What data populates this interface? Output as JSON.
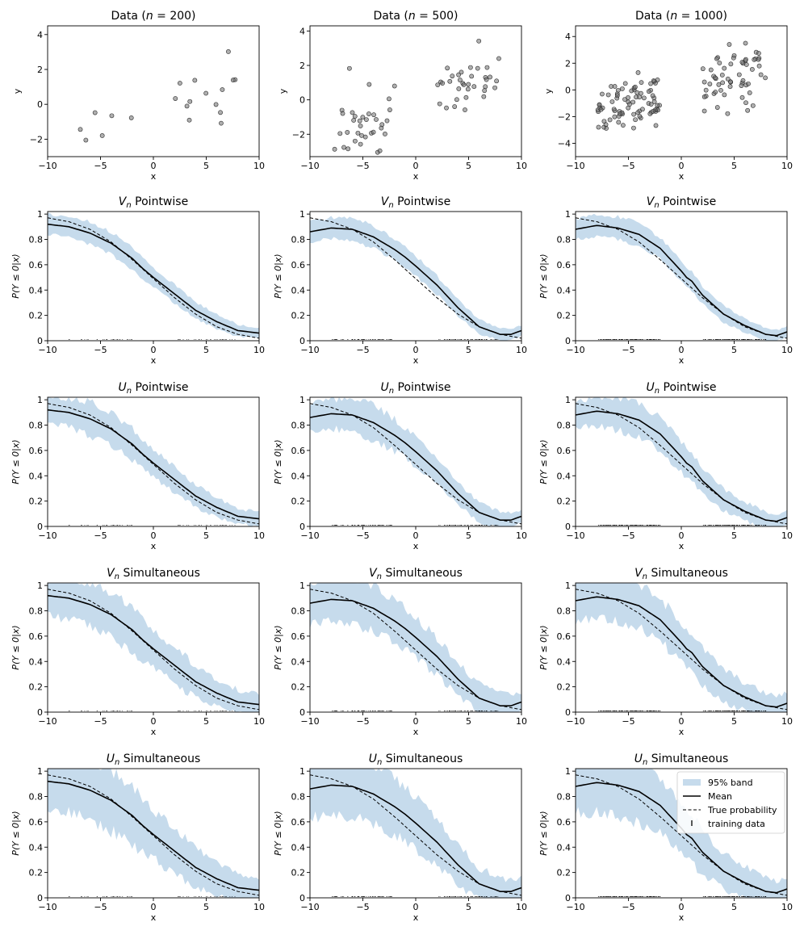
{
  "figure": {
    "columns": [
      {
        "n": 200,
        "scatter_ylim": [
          -3,
          4.5
        ],
        "scatter_yticks": [
          -2,
          0,
          2,
          4
        ]
      },
      {
        "n": 500,
        "scatter_ylim": [
          -3.3,
          4.3
        ],
        "scatter_yticks": [
          -2,
          0,
          2,
          4
        ]
      },
      {
        "n": 1000,
        "scatter_ylim": [
          -5.0,
          4.8
        ],
        "scatter_yticks": [
          -4,
          -2,
          0,
          2,
          4
        ]
      }
    ],
    "row_titles": {
      "data_prefix": "Data (",
      "data_var": "n",
      "data_op": " = ",
      "data_suffix": ")",
      "rows": [
        {
          "sym": "V",
          "sub": "n",
          "rest": " Pointwise"
        },
        {
          "sym": "U",
          "sub": "n",
          "rest": " Pointwise"
        },
        {
          "sym": "V",
          "sub": "n",
          "rest": " Simultaneous"
        },
        {
          "sym": "U",
          "sub": "n",
          "rest": " Simultaneous"
        }
      ]
    },
    "scatter_ylabel": "y",
    "xlabel": "x",
    "prob_ylabel": "P(Y ≤ 0|x)",
    "colors": {
      "band": "#c6dbec",
      "mean": "#000000",
      "true": "#000000",
      "points": "#6e6e6e"
    }
  },
  "chart_data": {
    "type": "grid",
    "xlim": [
      -10,
      10
    ],
    "xticks": [
      -10,
      -5,
      0,
      5,
      10
    ],
    "prob_ylim": [
      0,
      1.02
    ],
    "prob_yticks": [
      0.0,
      0.2,
      0.4,
      0.6,
      0.8,
      1.0
    ],
    "training_ranges": [
      [
        -8,
        -2
      ],
      [
        2,
        8
      ]
    ],
    "true_probability": {
      "x": [
        -10,
        -8,
        -6,
        -4,
        -2,
        0,
        2,
        4,
        6,
        8,
        10
      ],
      "y": [
        0.97,
        0.94,
        0.88,
        0.78,
        0.64,
        0.49,
        0.34,
        0.21,
        0.11,
        0.05,
        0.02
      ]
    },
    "mean": [
      {
        "x": [
          -10,
          -8,
          -6,
          -4,
          -2,
          -1,
          0,
          2,
          4,
          6,
          8,
          10
        ],
        "y": [
          0.92,
          0.9,
          0.85,
          0.77,
          0.65,
          0.57,
          0.5,
          0.37,
          0.24,
          0.15,
          0.08,
          0.06
        ]
      },
      {
        "x": [
          -10,
          -8,
          -6,
          -4,
          -2,
          -1,
          0,
          2,
          4,
          6,
          8,
          9,
          10
        ],
        "y": [
          0.86,
          0.89,
          0.88,
          0.82,
          0.72,
          0.66,
          0.59,
          0.44,
          0.26,
          0.11,
          0.05,
          0.05,
          0.08
        ]
      },
      {
        "x": [
          -10,
          -8,
          -6,
          -4,
          -2,
          0,
          0.5,
          1,
          2,
          4,
          6,
          8,
          9,
          10
        ],
        "y": [
          0.88,
          0.91,
          0.89,
          0.84,
          0.73,
          0.55,
          0.5,
          0.47,
          0.36,
          0.21,
          0.12,
          0.05,
          0.04,
          0.07
        ]
      }
    ],
    "scatter_samples": [
      20,
      70,
      140
    ],
    "panels": [
      {
        "row": "Data (n = 200)",
        "series": [
          "points"
        ]
      },
      {
        "row": "Vn Pointwise",
        "band": "95% band",
        "band_halfwidth": [
          [
            -10,
            0.08
          ],
          [
            -5,
            0.09
          ],
          [
            0,
            0.08
          ],
          [
            5,
            0.06
          ],
          [
            10,
            0.04
          ]
        ]
      },
      {
        "row": "Un Pointwise",
        "band": "95% band",
        "band_halfwidth": [
          [
            -10,
            0.1
          ],
          [
            -5,
            0.14
          ],
          [
            0,
            0.12
          ],
          [
            5,
            0.08
          ],
          [
            10,
            0.05
          ]
        ]
      },
      {
        "row": "Vn Simultaneous",
        "band": "95% band",
        "band_halfwidth": [
          [
            -10,
            0.16
          ],
          [
            -5,
            0.18
          ],
          [
            0,
            0.16
          ],
          [
            5,
            0.12
          ],
          [
            10,
            0.08
          ]
        ]
      },
      {
        "row": "Un Simultaneous",
        "band": "95% band",
        "band_halfwidth": [
          [
            -10,
            0.22
          ],
          [
            -5,
            0.25
          ],
          [
            0,
            0.2
          ],
          [
            5,
            0.14
          ],
          [
            10,
            0.08
          ]
        ]
      }
    ],
    "legend": {
      "position": "upper-right of bottom-right panel",
      "entries": [
        "95% band",
        "Mean",
        "True probability",
        "training data"
      ]
    }
  }
}
